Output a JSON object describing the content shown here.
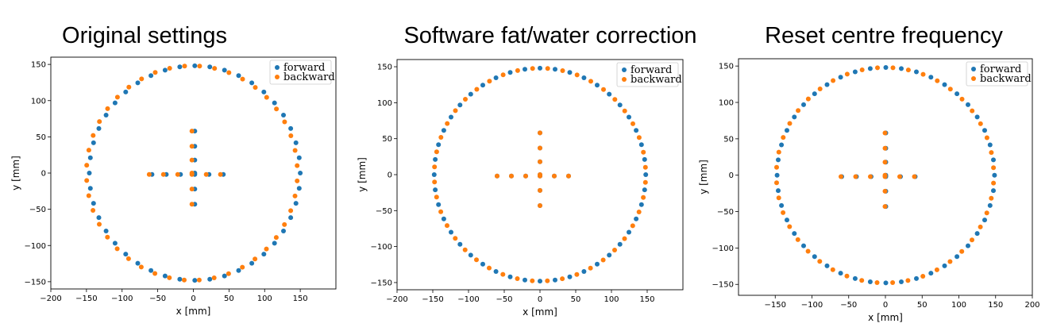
{
  "colors": {
    "forward": "#1f77b4",
    "backward": "#ff7f0e"
  },
  "chart_data": [
    {
      "type": "scatter",
      "title": "Original settings",
      "xlabel": "x [mm]",
      "ylabel": "y [mm]",
      "xlim": [
        -200,
        200
      ],
      "ylim": [
        -160,
        160
      ],
      "xticks": [
        "−200",
        "−150",
        "−100",
        "−50",
        "0",
        "50",
        "100",
        "150"
      ],
      "xtick_values": [
        -200,
        -150,
        -100,
        -50,
        0,
        50,
        100,
        150
      ],
      "yticks": [
        "−150",
        "−100",
        "−50",
        "0",
        "50",
        "100",
        "150"
      ],
      "ytick_values": [
        -150,
        -100,
        -50,
        0,
        50,
        100,
        150
      ],
      "legend": {
        "position": "upper right",
        "entries": [
          "forward",
          "backward"
        ]
      },
      "grid": false,
      "series": [
        {
          "name": "forward",
          "x": [],
          "y": []
        },
        {
          "name": "backward",
          "x": [],
          "y": []
        }
      ]
    },
    {
      "type": "scatter",
      "title": "Software fat/water correction",
      "xlabel": "x [mm]",
      "ylabel": "y [mm]",
      "xlim": [
        -200,
        200
      ],
      "ylim": [
        -160,
        160
      ],
      "xticks": [
        "−200",
        "−150",
        "−100",
        "−50",
        "0",
        "50",
        "100",
        "150"
      ],
      "xtick_values": [
        -200,
        -150,
        -100,
        -50,
        0,
        50,
        100,
        150
      ],
      "yticks": [
        "−150",
        "−100",
        "−50",
        "0",
        "50",
        "100",
        "150"
      ],
      "ytick_values": [
        -150,
        -100,
        -50,
        0,
        50,
        100,
        150
      ],
      "legend": {
        "position": "upper right",
        "entries": [
          "forward",
          "backward"
        ]
      },
      "grid": false,
      "series": [
        {
          "name": "forward",
          "x": [],
          "y": []
        },
        {
          "name": "backward",
          "x": [],
          "y": []
        }
      ]
    },
    {
      "type": "scatter",
      "title": "Reset centre frequency",
      "xlabel": "x [mm]",
      "ylabel": "y [mm]",
      "xlim": [
        -200,
        200
      ],
      "ylim": [
        -165,
        160
      ],
      "xticks": [
        "−150",
        "−100",
        "−50",
        "0",
        "50",
        "100",
        "150",
        "200"
      ],
      "xtick_values": [
        -150,
        -100,
        -50,
        0,
        50,
        100,
        150,
        200
      ],
      "yticks": [
        "−150",
        "−100",
        "−50",
        "0",
        "50",
        "100",
        "150"
      ],
      "ytick_values": [
        -150,
        -100,
        -50,
        0,
        50,
        100,
        150
      ],
      "legend": {
        "position": "upper right",
        "entries": [
          "forward",
          "backward"
        ]
      },
      "grid": false,
      "series": [
        {
          "name": "forward",
          "x": [],
          "y": []
        },
        {
          "name": "backward",
          "x": [],
          "y": []
        }
      ]
    }
  ]
}
